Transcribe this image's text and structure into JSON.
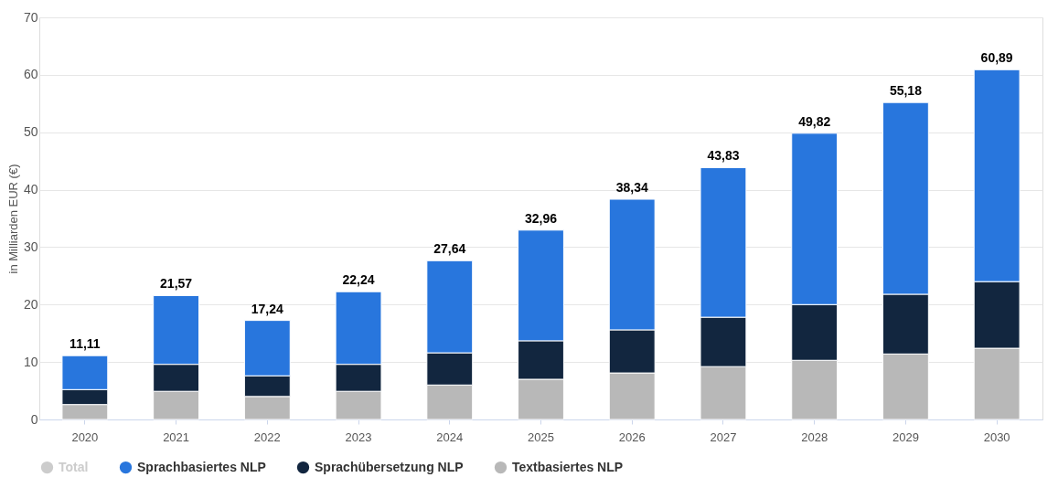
{
  "chart_data": {
    "type": "bar",
    "stacked": true,
    "ylabel": "in Milliarden EUR (€)",
    "categories": [
      "2020",
      "2021",
      "2022",
      "2023",
      "2024",
      "2025",
      "2026",
      "2027",
      "2028",
      "2029",
      "2030"
    ],
    "series": [
      {
        "name": "Textbasiertes NLP",
        "color": "#b8b8b8",
        "values": [
          2.6,
          4.9,
          4.0,
          4.9,
          6.0,
          7.0,
          8.1,
          9.2,
          10.3,
          11.4,
          12.4
        ]
      },
      {
        "name": "Sprachübersetzung NLP",
        "color": "#12263f",
        "values": [
          2.6,
          4.7,
          3.6,
          4.7,
          5.6,
          6.7,
          7.5,
          8.6,
          9.7,
          10.4,
          11.6
        ]
      },
      {
        "name": "Sprachbasiertes NLP",
        "color": "#2876dd",
        "values": [
          5.91,
          11.97,
          9.64,
          12.64,
          16.04,
          19.26,
          22.74,
          26.03,
          29.82,
          33.38,
          36.89
        ]
      },
      {
        "name": "Total",
        "color": "#cccccc",
        "values": [
          null,
          null,
          null,
          null,
          null,
          null,
          null,
          null,
          null,
          null,
          null
        ]
      }
    ],
    "totals": [
      "11,11",
      "21,57",
      "17,24",
      "22,24",
      "27,64",
      "32,96",
      "38,34",
      "43,83",
      "49,82",
      "55,18",
      "60,89"
    ],
    "ylim": [
      0,
      70
    ],
    "yticks": [
      0,
      10,
      20,
      30,
      40,
      50,
      60,
      70
    ],
    "grid": "y",
    "legend": "bottom"
  }
}
